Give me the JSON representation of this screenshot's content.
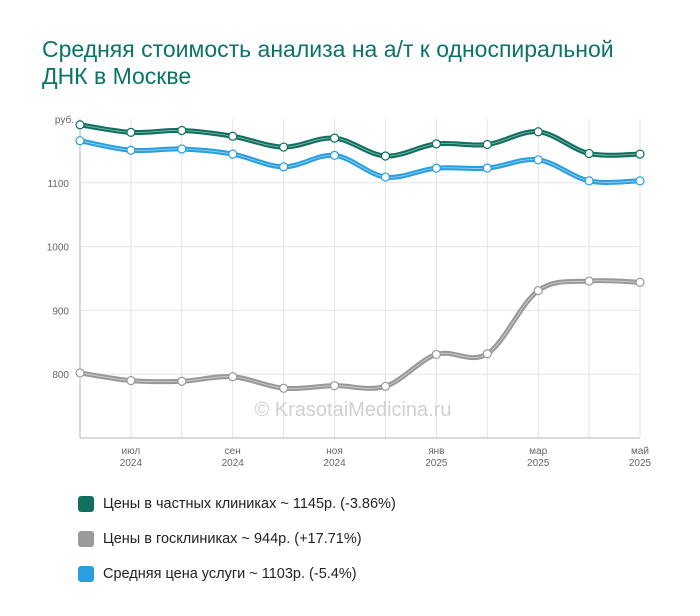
{
  "title": "Средняя стоимость анализа на а/т к односпиральной ДНК в Москве",
  "watermark": "© KrasotaiMedicina.ru",
  "chart_data": {
    "type": "line",
    "y_unit_label": "руб.",
    "ylim": [
      700,
      1200
    ],
    "yticks": [
      800,
      900,
      1000,
      1100
    ],
    "grid": true,
    "legend_position": "bottom",
    "point_count": 12,
    "x_ticks": [
      {
        "index": 1,
        "line1": "июл",
        "line2": "2024"
      },
      {
        "index": 3,
        "line1": "сен",
        "line2": "2024"
      },
      {
        "index": 5,
        "line1": "ноя",
        "line2": "2024"
      },
      {
        "index": 7,
        "line1": "янв",
        "line2": "2025"
      },
      {
        "index": 9,
        "line1": "мар",
        "line2": "2025"
      },
      {
        "index": 11,
        "line1": "май",
        "line2": "2025"
      }
    ],
    "series": [
      {
        "name": "Цены в частных клиниках",
        "color": "#10705f",
        "values": [
          1191,
          1179,
          1182,
          1173,
          1156,
          1170,
          1142,
          1161,
          1160,
          1180,
          1146,
          1145
        ],
        "legend": "Цены в частных клиниках ~ 1145р. (-3.86%)"
      },
      {
        "name": "Цены в госклиниках",
        "color": "#999999",
        "values": [
          802,
          790,
          789,
          796,
          778,
          782,
          781,
          831,
          832,
          931,
          946,
          944
        ],
        "legend": "Цены в госклиниках ~ 944р. (+17.71%)"
      },
      {
        "name": "Средняя цена услуги",
        "color": "#2a9fde",
        "values": [
          1166,
          1151,
          1153,
          1145,
          1125,
          1143,
          1109,
          1123,
          1123,
          1136,
          1103,
          1103
        ],
        "legend": "Средняя цена услуги ~ 1103р. (-5.4%)"
      }
    ]
  }
}
